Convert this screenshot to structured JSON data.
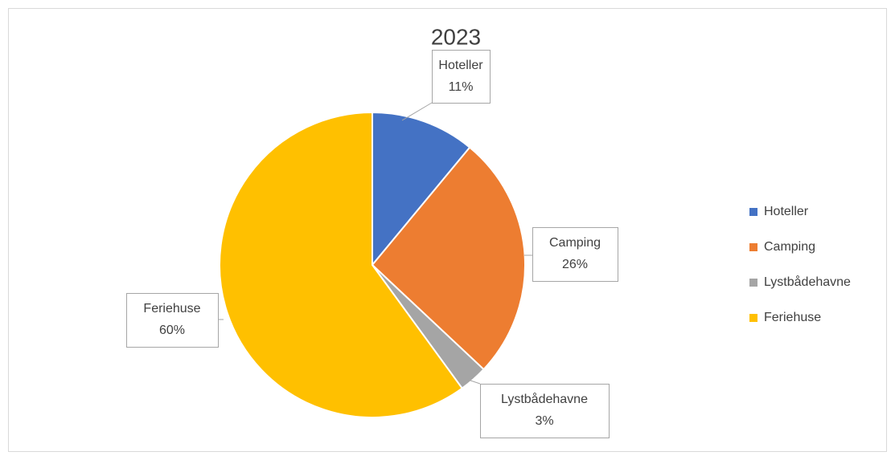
{
  "chart_data": {
    "type": "pie",
    "title": "2023",
    "categories": [
      "Hoteller",
      "Camping",
      "Lystbådehavne",
      "Feriehuse"
    ],
    "values": [
      11,
      26,
      3,
      60
    ],
    "value_labels": [
      "11%",
      "26%",
      "3%",
      "60%"
    ],
    "colors": [
      "#4472c4",
      "#ed7d31",
      "#a5a5a5",
      "#ffc000"
    ],
    "legend": "right"
  }
}
